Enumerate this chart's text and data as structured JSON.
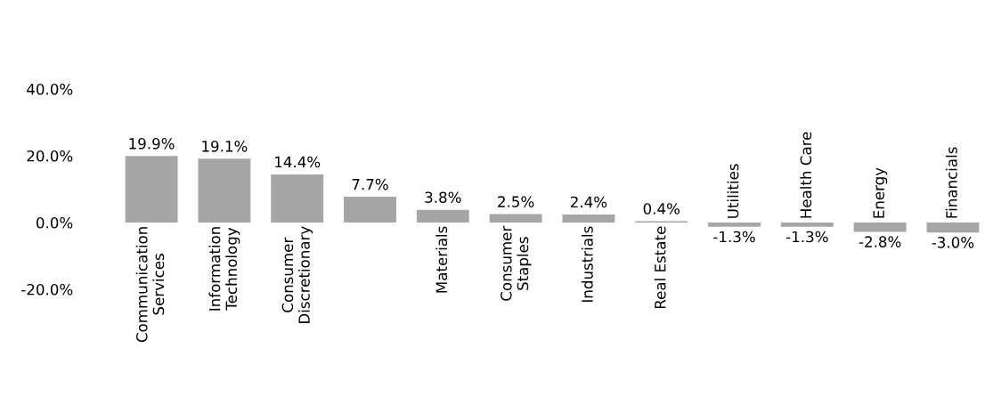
{
  "chart_data": {
    "type": "bar",
    "categories": [
      "Communication\nServices",
      "Information\nTechnology",
      "Consumer\nDiscretionary",
      null,
      "Materials",
      "Consumer\nStaples",
      "Industrials",
      "Real Estate",
      "Utilities",
      "Health Care",
      "Energy",
      "Financials"
    ],
    "values": [
      19.9,
      19.1,
      14.4,
      7.7,
      3.8,
      2.5,
      2.4,
      0.4,
      -1.3,
      -1.3,
      -2.8,
      -3.0
    ],
    "value_labels": [
      "19.9%",
      "19.1%",
      "14.4%",
      "7.7%",
      "3.8%",
      "2.5%",
      "2.4%",
      "0.4%",
      "-1.3%",
      "-1.3%",
      "-2.8%",
      "-3.0%"
    ],
    "color": "#a6a6a6",
    "ylim": [
      -20,
      40
    ],
    "yticks": [
      {
        "value": 40,
        "label": "40.0%"
      },
      {
        "value": 20,
        "label": "20.0%"
      },
      {
        "value": 0,
        "label": "0.0%"
      },
      {
        "value": -20,
        "label": "-20.0%"
      }
    ],
    "grid": false
  }
}
